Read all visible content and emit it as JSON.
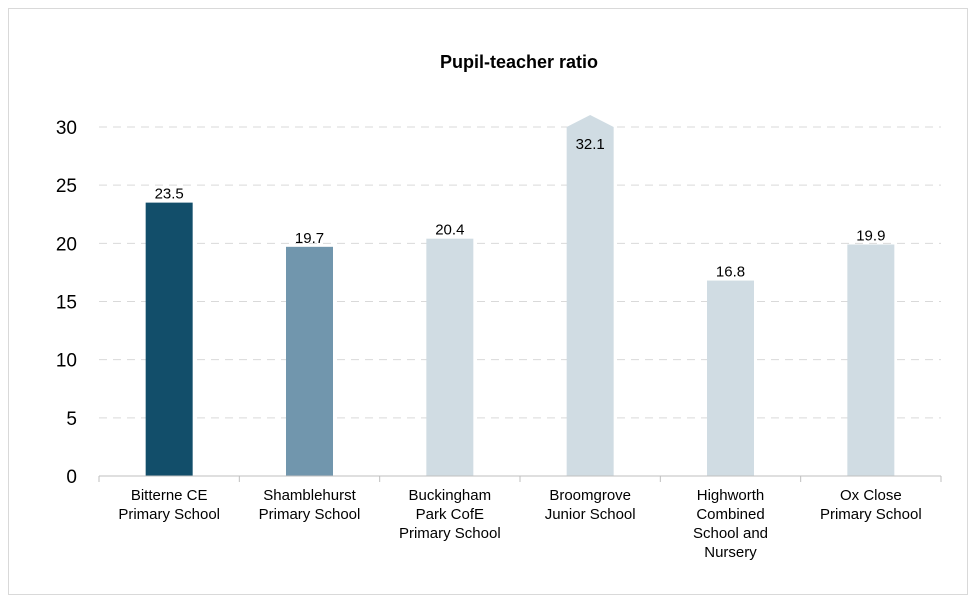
{
  "chart_data": {
    "type": "bar",
    "title": "Pupil-teacher ratio",
    "xlabel": "",
    "ylabel": "",
    "ylim": [
      0,
      30
    ],
    "yticks": [
      0,
      5,
      10,
      15,
      20,
      25,
      30
    ],
    "grid": true,
    "categories": [
      [
        "Bitterne CE",
        "Primary School"
      ],
      [
        "Shamblehurst",
        "Primary School"
      ],
      [
        "Buckingham",
        "Park CofE",
        "Primary School"
      ],
      [
        "Broomgrove",
        "Junior School"
      ],
      [
        "Highworth",
        "Combined",
        "School and",
        "Nursery"
      ],
      [
        "Ox Close",
        "Primary School"
      ]
    ],
    "values": [
      23.5,
      19.7,
      20.4,
      32.1,
      16.8,
      19.9
    ],
    "value_labels": [
      "23.5",
      "19.7",
      "20.4",
      "32.1",
      "16.8",
      "19.9"
    ],
    "bar_colors": [
      "#124e6a",
      "#7196ad",
      "#d0dce3",
      "#d0dce3",
      "#d0dce3",
      "#d0dce3"
    ],
    "overflow_indicator": "arrow-top"
  }
}
